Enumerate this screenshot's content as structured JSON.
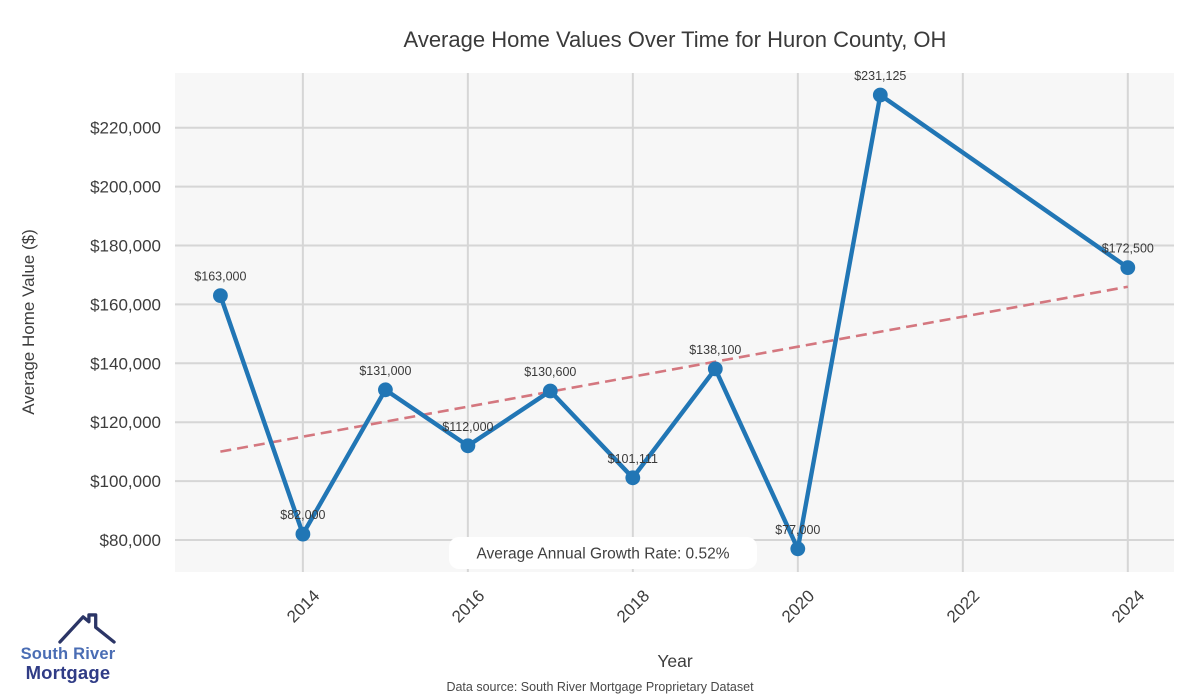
{
  "title": "Average Home Values Over Time for Huron County, OH",
  "annotation": "Average Annual Growth Rate: 0.52%",
  "footer": "Data source: South River Mortgage Proprietary Dataset",
  "logo": {
    "line1": "South River",
    "line2": "Mortgage",
    "line1_color": "#4a6db4",
    "line2_color": "#303c86",
    "roof_color": "#2b3566"
  },
  "chart_data": {
    "type": "line",
    "title": "Average Home Values Over Time for Huron County, OH",
    "xlabel": "Year",
    "ylabel": "Average Home Value ($)",
    "x": [
      2013,
      2014,
      2015,
      2016,
      2017,
      2018,
      2019,
      2020,
      2021,
      2024
    ],
    "values": [
      163000,
      82000,
      131000,
      112000,
      130600,
      101111,
      138100,
      77000,
      231125,
      172500
    ],
    "point_labels": [
      "$163,000",
      "$82,000",
      "$131,000",
      "$112,000",
      "$130,600",
      "$101,111",
      "$138,100",
      "$77,000",
      "$231,125",
      "$172,500"
    ],
    "x_ticks": {
      "values": [
        2014,
        2016,
        2018,
        2020,
        2022,
        2024
      ],
      "labels": [
        "2014",
        "2016",
        "2018",
        "2020",
        "2022",
        "2024"
      ]
    },
    "y_ticks": {
      "values": [
        80000,
        100000,
        120000,
        140000,
        160000,
        180000,
        200000,
        220000
      ],
      "labels": [
        "$80,000",
        "$100,000",
        "$120,000",
        "$140,000",
        "$160,000",
        "$180,000",
        "$200,000",
        "$220,000"
      ]
    },
    "xlim": [
      2012.45,
      2024.56
    ],
    "ylim": [
      69130,
      238580
    ],
    "grid": true,
    "legend": false,
    "trend_line": {
      "x1": 2013,
      "y1": 110000,
      "x2": 2024,
      "y2": 166000,
      "style": "dashed"
    },
    "annotation": "Average Annual Growth Rate: 0.52%",
    "line_color": "#2176b5",
    "trend_color": "#d4777f",
    "plot_bg": "#f7f7f7",
    "grid_color": "#d6d6d6",
    "text_color": "#3a3a3a"
  }
}
